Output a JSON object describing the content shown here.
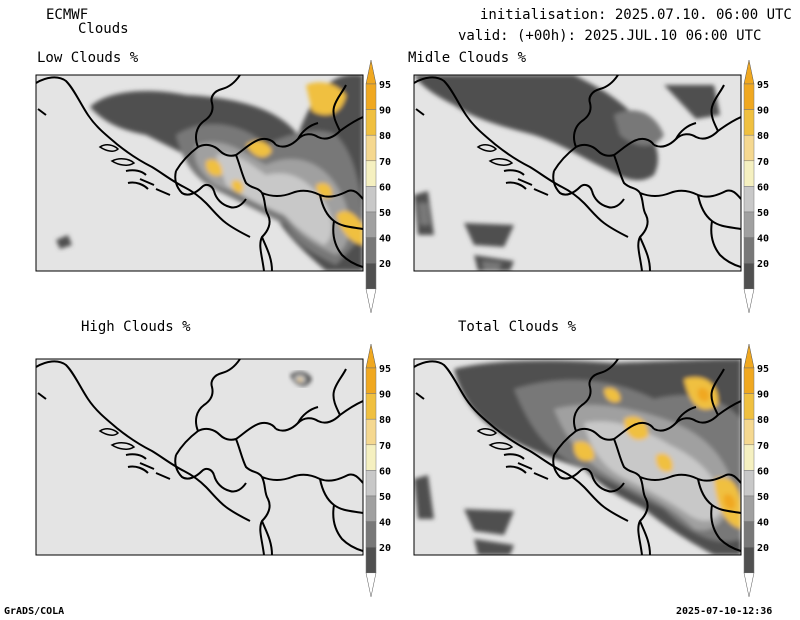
{
  "header": {
    "model": "ECMWF",
    "product": "Clouds",
    "init_line": "initialisation: 2025.07.10. 06:00 UTC",
    "valid_line": "valid: (+00h): 2025.JUL.10 06:00 UTC"
  },
  "panels": [
    {
      "id": "low",
      "title": "Low Clouds %"
    },
    {
      "id": "mid",
      "title": "Midle Clouds %"
    },
    {
      "id": "high",
      "title": "High Clouds %"
    },
    {
      "id": "total",
      "title": "Total Clouds %"
    }
  ],
  "colorbar": {
    "labels": [
      "95",
      "90",
      "80",
      "70",
      "60",
      "50",
      "40",
      "20"
    ],
    "colors": [
      "#f0a820",
      "#f0c040",
      "#f5d890",
      "#f5f0c0",
      "#c8c8c8",
      "#a0a0a0",
      "#787878",
      "#505050"
    ]
  },
  "footer": {
    "left": "GrADS/COLA",
    "right": "2025-07-10-12:36"
  }
}
